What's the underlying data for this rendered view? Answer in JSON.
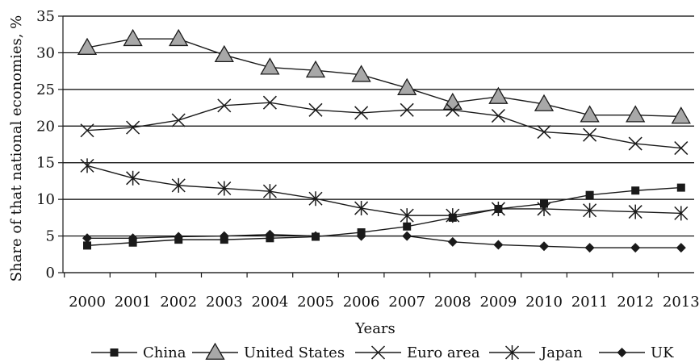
{
  "chart_data": {
    "type": "line",
    "title": "",
    "xlabel": "Years",
    "ylabel": "Share of that national economies, %",
    "x": [
      "2000",
      "2001",
      "2002",
      "2003",
      "2004",
      "2005",
      "2006",
      "2007",
      "2008",
      "2009",
      "2010",
      "2011",
      "2012",
      "2013"
    ],
    "ylim": [
      0,
      35
    ],
    "yticks": [
      "0",
      "5",
      "10",
      "15",
      "20",
      "25",
      "30",
      "35"
    ],
    "grid": "horizontal",
    "legend_position": "bottom",
    "series": [
      {
        "name": "China",
        "marker": "square",
        "values": [
          3.7,
          4.1,
          4.5,
          4.5,
          4.7,
          4.9,
          5.5,
          6.3,
          7.5,
          8.7,
          9.4,
          10.6,
          11.2,
          11.6
        ]
      },
      {
        "name": "United States",
        "marker": "triangle",
        "values": [
          30.7,
          31.9,
          31.9,
          29.7,
          28.0,
          27.6,
          27.0,
          25.2,
          23.2,
          24.0,
          23.0,
          21.5,
          21.5,
          21.3
        ]
      },
      {
        "name": "Euro area",
        "marker": "x",
        "values": [
          19.4,
          19.8,
          20.8,
          22.8,
          23.2,
          22.2,
          21.8,
          22.2,
          22.2,
          21.4,
          19.2,
          18.8,
          17.6,
          17.0
        ]
      },
      {
        "name": "Japan",
        "marker": "star",
        "values": [
          14.6,
          12.9,
          11.9,
          11.5,
          11.1,
          10.1,
          8.8,
          7.8,
          7.8,
          8.7,
          8.7,
          8.5,
          8.3,
          8.1
        ]
      },
      {
        "name": "UK",
        "marker": "diamond",
        "values": [
          4.7,
          4.7,
          4.9,
          5.0,
          5.2,
          5.0,
          5.0,
          5.0,
          4.2,
          3.8,
          3.6,
          3.4,
          3.4,
          3.4
        ]
      }
    ]
  },
  "colors": {
    "line": "#1a1a1a",
    "triangle_fill": "#a8a8a8",
    "grid": "#000000"
  }
}
